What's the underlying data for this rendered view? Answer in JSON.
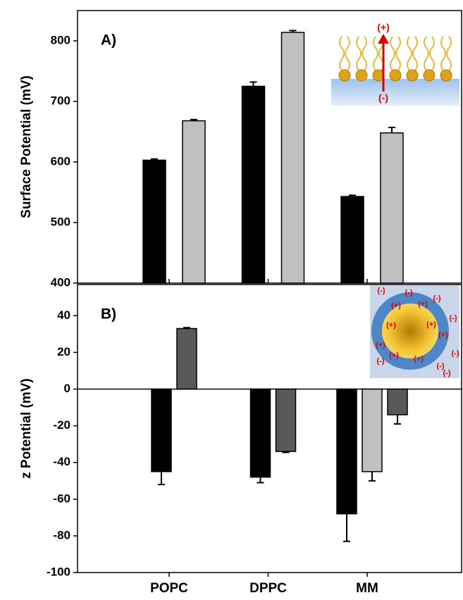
{
  "chart_data": [
    {
      "type": "bar",
      "label": "A)",
      "y_label": "Surface Potential (mV)",
      "ylim": [
        400,
        850
      ],
      "yticks": [
        400,
        500,
        600,
        700,
        800
      ],
      "series": [
        {
          "color": "#000000",
          "values": [
            603,
            725,
            543
          ],
          "errors": [
            2,
            7,
            2
          ]
        },
        {
          "color": "#c0c0c0",
          "values": [
            668,
            814,
            648
          ],
          "errors": [
            2,
            3,
            9
          ]
        }
      ],
      "inset_labels": [
        "(+)",
        "(-)"
      ]
    },
    {
      "type": "bar",
      "label": "B)",
      "y_label": "z Potential (mV)",
      "categories": [
        "POPC",
        "DPPC",
        "MM"
      ],
      "ylim": [
        -100,
        57
      ],
      "yticks": [
        -100,
        -80,
        -60,
        -40,
        -20,
        0,
        20,
        40
      ],
      "series": [
        {
          "color": "#000000",
          "values": [
            -45,
            -48,
            -68
          ],
          "errors": [
            7,
            3,
            15
          ]
        },
        {
          "color": "#c0c0c0",
          "values": [
            null,
            null,
            -45
          ],
          "errors": [
            null,
            null,
            5
          ]
        },
        {
          "color": "#595959",
          "values": [
            33,
            -34,
            -14
          ],
          "errors": [
            0.5,
            0.5,
            5
          ]
        }
      ],
      "inset_labels": [
        "(-)",
        "(-)",
        "(-)",
        "(-)",
        "(-)",
        "(-)",
        "(-)",
        "(-)",
        "(+)",
        "(+)",
        "(+)",
        "(+)",
        "(+)",
        "(+)",
        "(+)",
        "(+)"
      ]
    }
  ]
}
